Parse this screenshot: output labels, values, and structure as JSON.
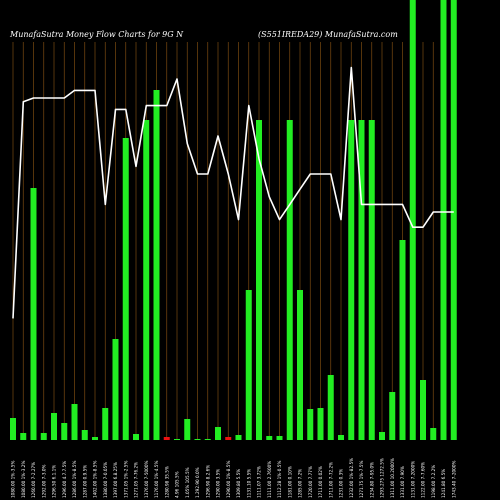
{
  "header": {
    "left_title": "MunafaSutra  Money Flow  Charts for 9G N",
    "right_title": "(S551IREDA29) MunafaSutra.com"
  },
  "colors": {
    "background": "#000000",
    "gridline": "#7a4a10",
    "up_bar": "#22ee22",
    "down_bar": "#ee1111",
    "line": "#ffffff",
    "text": "#ffffff"
  },
  "chart_data": {
    "type": "bar",
    "title": "",
    "grid": true,
    "categories": [
      "1080.00 1%-3.5%",
      "1080.00 1%-3.2%",
      "1260.00 7-2.27%",
      "1292.00 7-3.0%",
      "1296.50 6.1.1%",
      "1296.00 4.7.7.5%",
      "1286.00 1%-8.5%",
      "1287.00 0.9.5%",
      "1402.00 1%-8.5%",
      "1380.00 7-0.05%",
      "1397.00 6.8.25%",
      "1371.05 1%-2.5%",
      "1271.05 7-76.2%",
      "1376.00 7-5000%",
      "1176.00 1%-4.5%",
      "1280.98 35.5%",
      "4.96 105.5%",
      "1.05% 105.5%",
      "1.292.90 0.0%",
      "1296.90 8.2.6%",
      "1290.00 3.5%",
      "1290.00 1%-8.5%",
      "1309.80 5.5%",
      "1131.10 5.5%",
      "1111.07 3.72%",
      "1111.00 2.7600%",
      "1112.28 1%-0.5%",
      "1181.00 0.10%",
      "1285.00 7.2%",
      "1720.00 7.77%",
      "1711.00 0.02%",
      "1711.00 7-72.2%",
      "1231.00 0.3%",
      "1232.00 1%-82.5%",
      "1271.75 1%-7.5%",
      "1234.80 7-95.0%",
      "1293.275 1272.5%",
      "1311.00 10.2000%",
      "1331.00 7.90%",
      "1131.00 7.2000%",
      "1122.00 7-7.60%",
      "1198.00 7.2.2%",
      "1241.80 6.5%",
      "1743.40 7-2000%"
    ],
    "values": [
      22,
      7,
      252,
      7,
      27,
      17,
      36,
      10,
      3,
      32,
      101,
      302,
      6,
      320,
      350,
      3,
      1,
      21,
      1,
      1,
      13,
      3,
      5,
      150,
      320,
      4,
      4,
      320,
      150,
      31,
      32,
      65,
      5,
      320,
      320,
      320,
      8,
      48,
      200,
      999,
      60,
      12,
      999,
      999
    ],
    "bar_colors": [
      "green",
      "green",
      "green",
      "green",
      "green",
      "green",
      "green",
      "green",
      "green",
      "green",
      "green",
      "green",
      "green",
      "green",
      "green",
      "red",
      "green",
      "green",
      "green",
      "green",
      "green",
      "red",
      "green",
      "green",
      "green",
      "green",
      "green",
      "green",
      "green",
      "green",
      "green",
      "green",
      "green",
      "green",
      "green",
      "green",
      "green",
      "green",
      "green",
      "green",
      "green",
      "green",
      "green",
      "green"
    ],
    "line_series": {
      "name": "",
      "values": [
        0.32,
        0.89,
        0.9,
        0.9,
        0.9,
        0.9,
        0.92,
        0.92,
        0.92,
        0.62,
        0.87,
        0.87,
        0.72,
        0.88,
        0.88,
        0.88,
        0.95,
        0.78,
        0.7,
        0.7,
        0.8,
        0.7,
        0.58,
        0.88,
        0.74,
        0.64,
        0.58,
        0.62,
        0.66,
        0.7,
        0.7,
        0.7,
        0.58,
        0.98,
        0.62,
        0.62,
        0.62,
        0.62,
        0.62,
        0.56,
        0.56,
        0.6,
        0.6,
        0.6
      ]
    }
  }
}
